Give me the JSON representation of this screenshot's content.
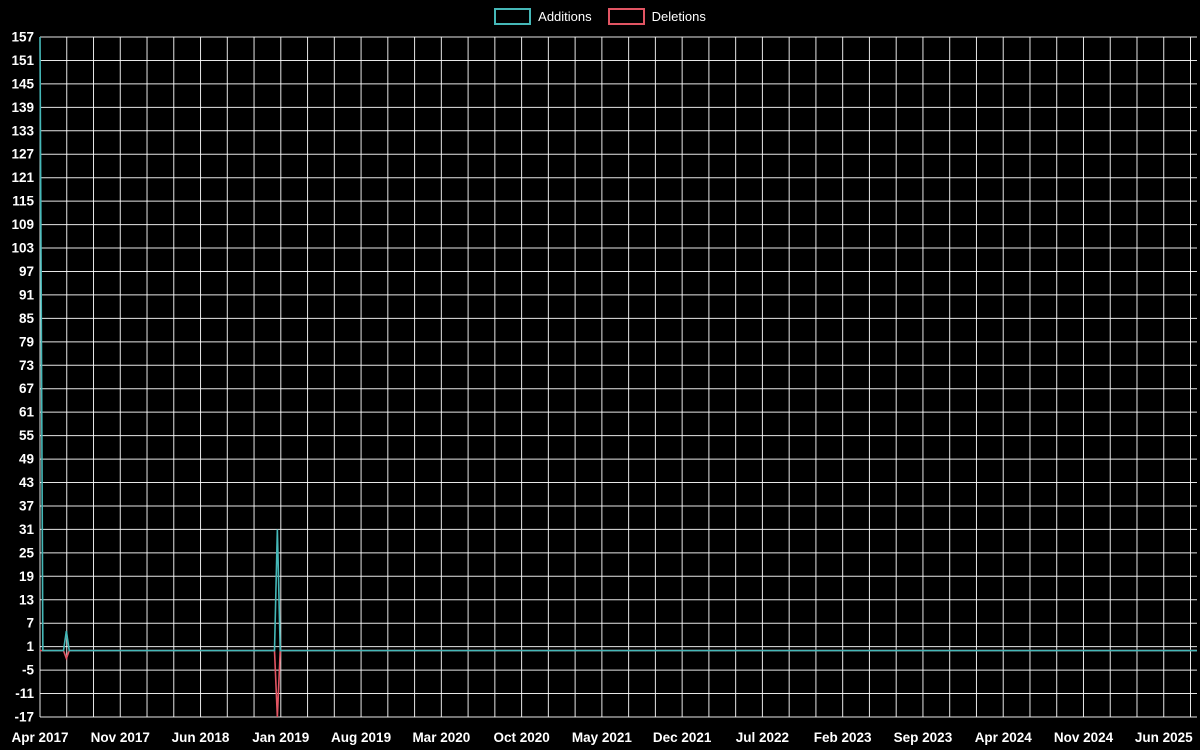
{
  "legend": {
    "items": [
      {
        "label": "Additions",
        "color": "#45b8b8"
      },
      {
        "label": "Deletions",
        "color": "#e25563"
      }
    ]
  },
  "chart_data": {
    "type": "line",
    "title": "",
    "x_tick_labels": [
      "Apr 2017",
      "Nov 2017",
      "Jun 2018",
      "Jan 2019",
      "Aug 2019",
      "Mar 2020",
      "Oct 2020",
      "May 2021",
      "Dec 2021",
      "Jul 2022",
      "Feb 2023",
      "Sep 2023",
      "Apr 2024",
      "Nov 2024",
      "Jun 2025"
    ],
    "x_tick_months": [
      0,
      7,
      14,
      21,
      28,
      35,
      42,
      49,
      56,
      63,
      70,
      77,
      84,
      91,
      98
    ],
    "x_grid_divisions_per_label": 3,
    "xlim_months": [
      0,
      100.9
    ],
    "y_ticks": [
      -17,
      -11,
      -5,
      1,
      7,
      13,
      19,
      25,
      31,
      37,
      43,
      49,
      55,
      61,
      67,
      73,
      79,
      85,
      91,
      97,
      103,
      109,
      115,
      121,
      127,
      133,
      139,
      145,
      151,
      157
    ],
    "ylim": [
      -17,
      157
    ],
    "grid": true,
    "legend_position": "top-center",
    "background": "#000000",
    "grid_color": "rgba(255,255,255,0.9)",
    "text_color": "#ffffff",
    "series": [
      {
        "name": "Additions",
        "color": "#45b8b8",
        "points": [
          [
            0,
            157
          ],
          [
            0.25,
            0
          ],
          [
            2.05,
            0
          ],
          [
            2.3,
            5
          ],
          [
            2.55,
            0
          ],
          [
            20.45,
            0
          ],
          [
            20.7,
            31
          ],
          [
            20.95,
            0
          ],
          [
            100.9,
            0
          ]
        ]
      },
      {
        "name": "Deletions",
        "color": "#e25563",
        "points": [
          [
            0,
            0
          ],
          [
            2.05,
            0
          ],
          [
            2.3,
            -2
          ],
          [
            2.55,
            0
          ],
          [
            20.45,
            0
          ],
          [
            20.7,
            -17
          ],
          [
            20.95,
            0
          ],
          [
            100.9,
            0
          ]
        ]
      }
    ]
  }
}
